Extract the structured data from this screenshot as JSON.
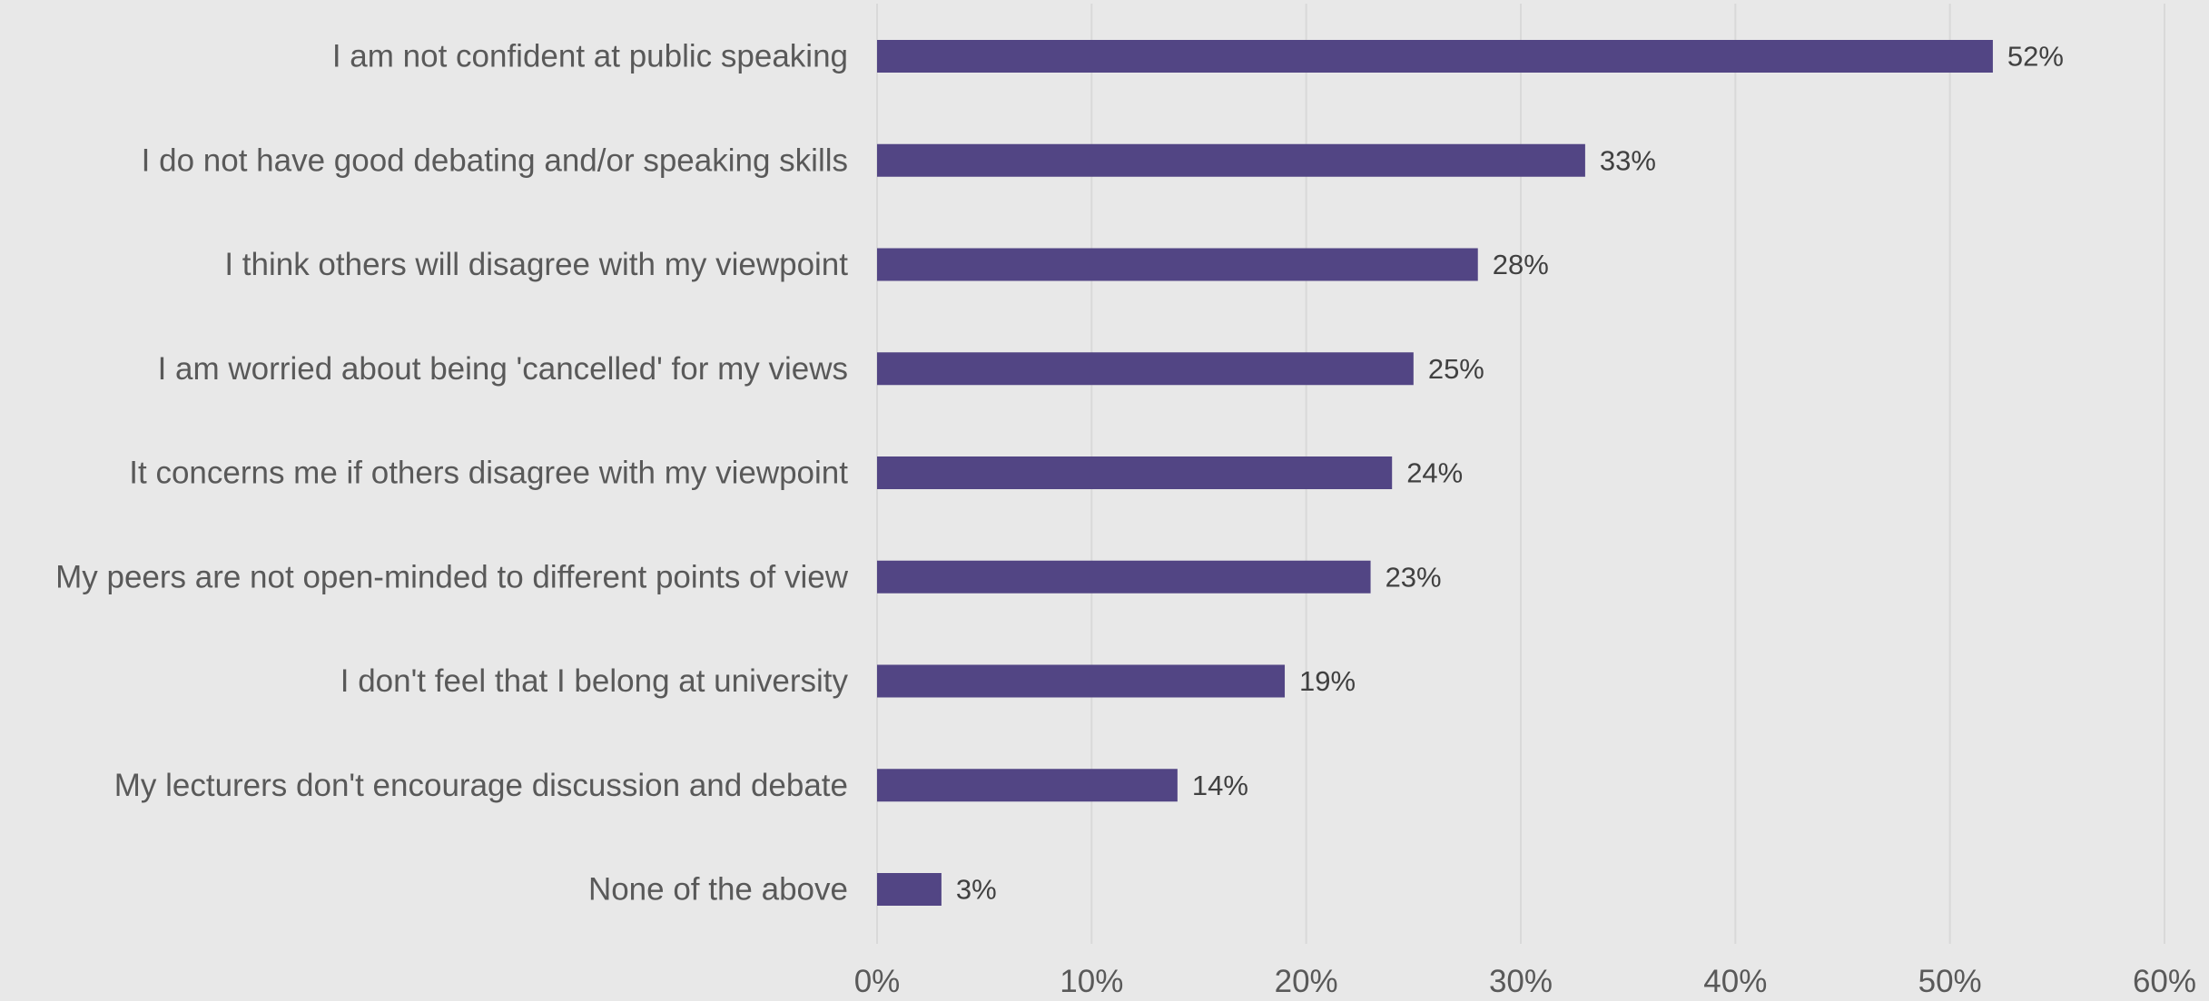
{
  "chart_data": {
    "type": "bar",
    "orientation": "horizontal",
    "categories": [
      "I am not confident at public speaking",
      "I do not have good debating and/or speaking skills",
      "I think others will disagree with my viewpoint",
      "I am worried about being 'cancelled' for my views",
      "It concerns me if others disagree with my viewpoint",
      "My peers are not open-minded to different points of view",
      "I don't feel that I belong at university",
      "My lecturers don't encourage discussion and debate",
      "None of the above"
    ],
    "values": [
      52,
      33,
      28,
      25,
      24,
      23,
      19,
      14,
      3
    ],
    "data_labels": [
      "52%",
      "33%",
      "28%",
      "25%",
      "24%",
      "23%",
      "19%",
      "14%",
      "3%"
    ],
    "xlim": [
      0,
      60
    ],
    "x_ticks": [
      0,
      10,
      20,
      30,
      40,
      50,
      60
    ],
    "x_tick_labels": [
      "0%",
      "10%",
      "20%",
      "30%",
      "40%",
      "50%",
      "60%"
    ],
    "grid": "vertical",
    "legend": "none",
    "title": "",
    "xlabel": "",
    "ylabel": "",
    "colors": {
      "bar": "#524584",
      "background": "#e8e8e8",
      "grid": "#d9d9d9",
      "category_text": "#595959",
      "value_text": "#404040"
    }
  }
}
